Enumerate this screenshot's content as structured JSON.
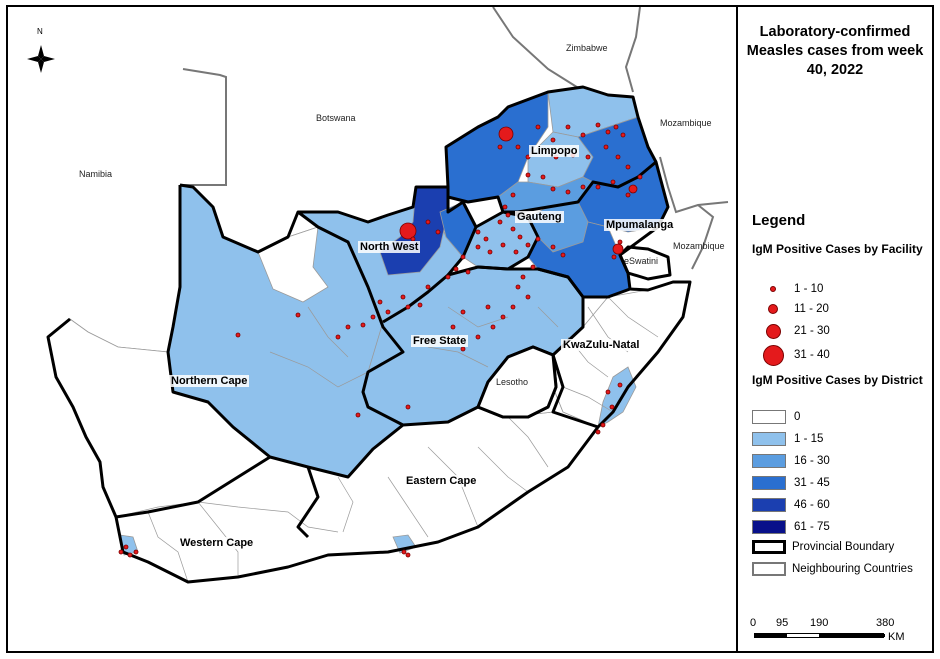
{
  "title": "Laboratory-confirmed Measles cases from week 40, 2022",
  "north_arrow": "N",
  "countries": [
    "Zimbabwe",
    "Botswana",
    "Namibia",
    "Mozambique",
    "Mozambique",
    "eSwatini",
    "Lesotho"
  ],
  "provinces": [
    "Limpopo",
    "Gauteng",
    "Mpumalanga",
    "North West",
    "Free State",
    "KwaZulu-Natal",
    "Northern Cape",
    "Eastern Cape",
    "Western Cape"
  ],
  "legend": {
    "heading": "Legend",
    "facility_heading": "IgM Positive Cases by Facility",
    "facility_classes": [
      "1 - 10",
      "11 - 20",
      "21 - 30",
      "31 - 40"
    ],
    "district_heading": "IgM Positive Cases by District",
    "district_classes": [
      {
        "label": "0",
        "color": "#ffffff"
      },
      {
        "label": "1 - 15",
        "color": "#8fc1ec"
      },
      {
        "label": "16 - 30",
        "color": "#5b9de0"
      },
      {
        "label": "31 - 45",
        "color": "#2a6fd0"
      },
      {
        "label": "46 - 60",
        "color": "#1b3fb0"
      },
      {
        "label": "61 - 75",
        "color": "#08108a"
      }
    ],
    "provincial_boundary": "Provincial Boundary",
    "neighbouring_countries": "Neighbouring Countries"
  },
  "scale_bar": {
    "ticks": [
      "0",
      "95",
      "190",
      "380"
    ],
    "unit": "KM"
  },
  "colors": {
    "dot": "#e41a1c",
    "dot_stroke": "#7a0000",
    "province_line": "#000000",
    "country_line": "#777777",
    "district_line": "#9a9a9a"
  }
}
